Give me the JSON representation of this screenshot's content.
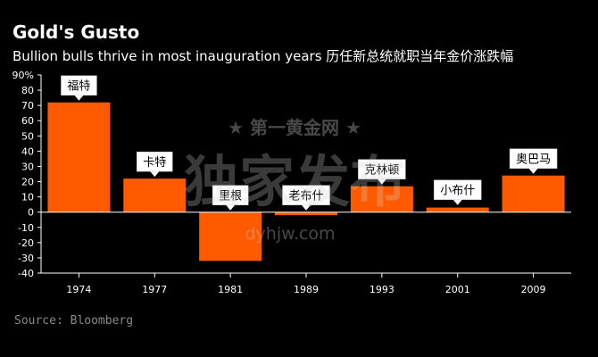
{
  "title": "Gold's Gusto",
  "subtitle": "Bullion bulls thrive in most inauguration years  历任新总统就职当年金价涨跌幅",
  "source": "Source: Bloomberg",
  "watermark": {
    "line1": "★ 第一黄金网 ★",
    "line2": "独家发布",
    "line3": "dyhjw.com"
  },
  "colors": {
    "bar": "#ff5a00",
    "background": "#000000",
    "gridline": "#ffffff"
  },
  "chart_data": {
    "type": "bar",
    "categories": [
      "1974",
      "1977",
      "1981",
      "1989",
      "1993",
      "2001",
      "2009"
    ],
    "values": [
      72,
      22,
      -32,
      -2,
      17,
      3,
      24
    ],
    "data_labels": [
      "福特",
      "卡特",
      "里根",
      "老布什",
      "克林顿",
      "小布什",
      "奥巴马"
    ],
    "y_tick_labels": [
      "90%",
      "80",
      "70",
      "60",
      "50",
      "40",
      "30",
      "20",
      "10",
      "0",
      "-10",
      "-20",
      "-30",
      "-40"
    ],
    "ylim": [
      -40,
      90
    ],
    "ytick_step": 10,
    "grid": false
  }
}
